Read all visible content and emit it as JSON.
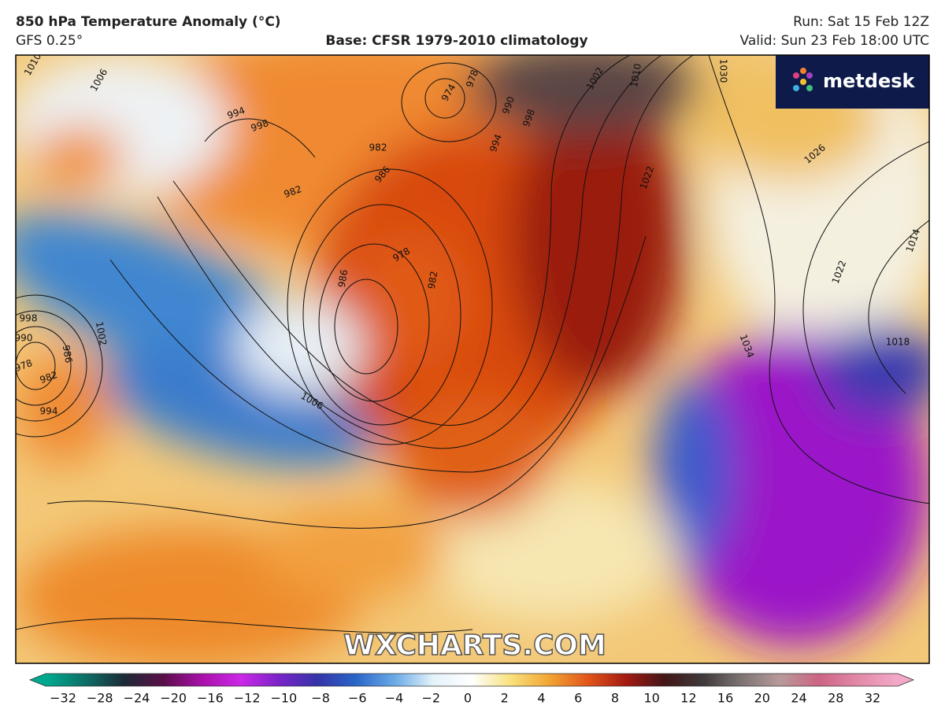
{
  "header": {
    "title": "850 hPa Temperature Anomaly (°C)",
    "model": "GFS 0.25°",
    "base": "Base: CFSR 1979-2010 climatology",
    "run": "Run: Sat 15 Feb 12Z",
    "valid": "Valid: Sun 23 Feb 18:00 UTC"
  },
  "map": {
    "logo": "metdesk",
    "watermark": "WXCHARTS.COM",
    "isobars": [
      "1010",
      "1006",
      "994",
      "998",
      "982",
      "986",
      "974",
      "978",
      "990",
      "998",
      "994",
      "982",
      "978",
      "982",
      "986",
      "1002",
      "1010",
      "1006",
      "1002",
      "998",
      "990",
      "986",
      "982",
      "978",
      "994",
      "1026",
      "1022",
      "1014",
      "1018",
      "1034",
      "1030",
      "1022"
    ]
  },
  "colorbar": {
    "ticks": [
      "−32",
      "−28",
      "−24",
      "−20",
      "−16",
      "−12",
      "−10",
      "−8",
      "−6",
      "−4",
      "−2",
      "0",
      "2",
      "4",
      "6",
      "8",
      "10",
      "12",
      "16",
      "20",
      "24",
      "28",
      "32"
    ]
  }
}
